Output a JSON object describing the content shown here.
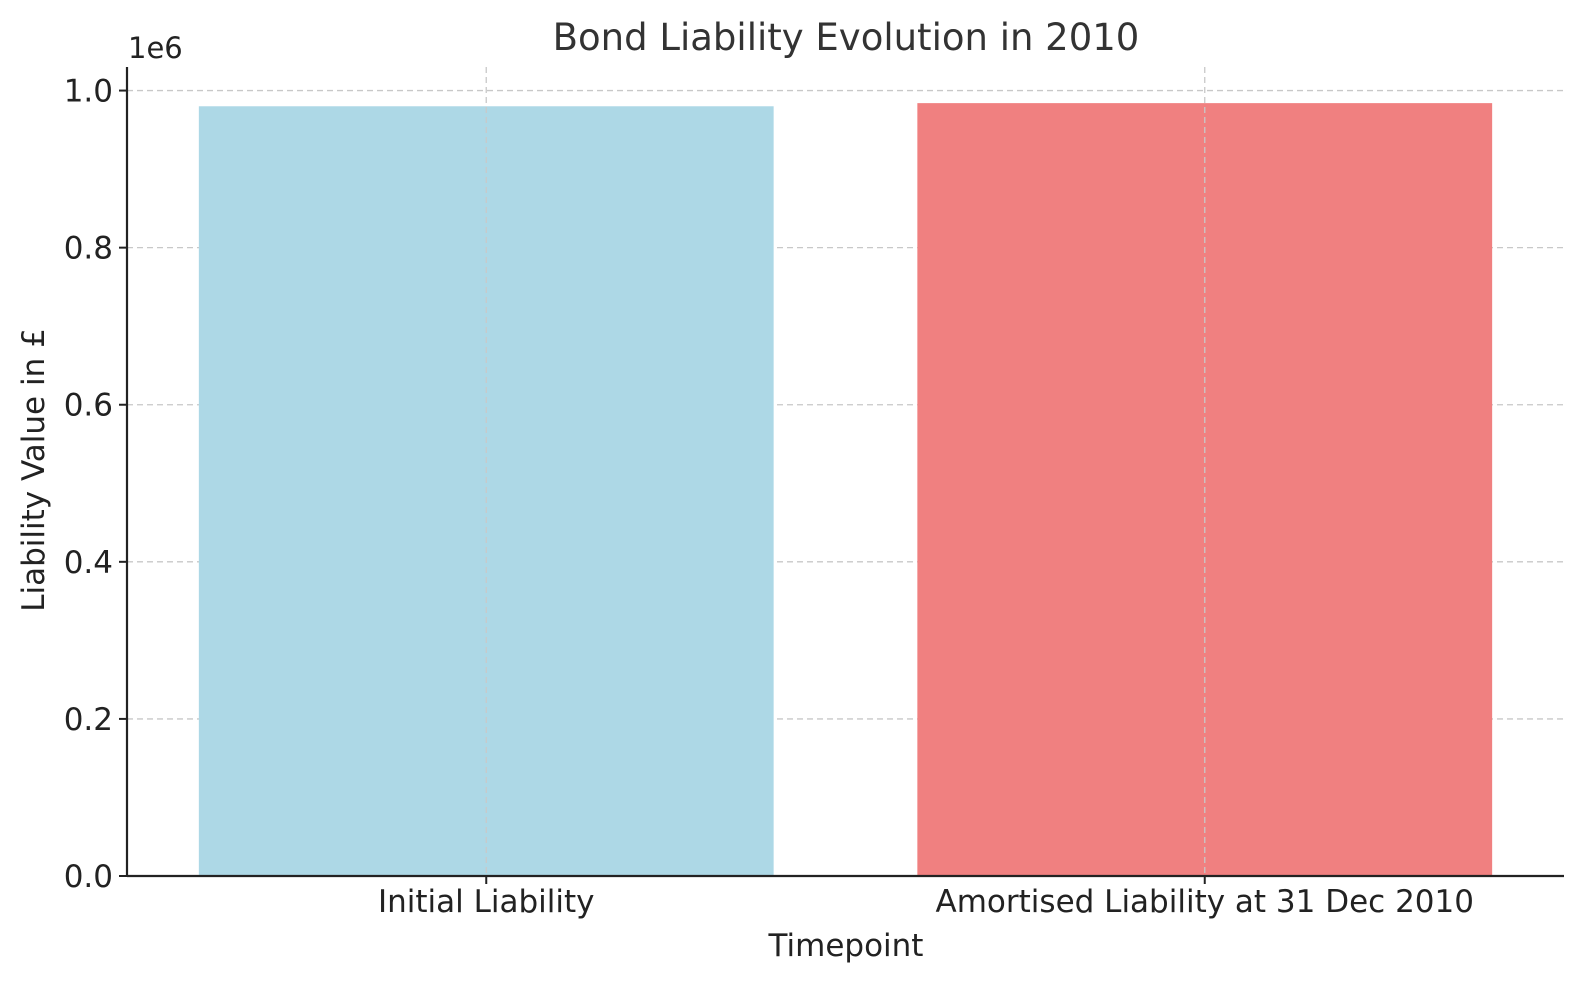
{
  "chart_data": {
    "type": "bar",
    "title": "Bond Liability Evolution in 2010",
    "xlabel": "Timepoint",
    "ylabel": "Liability Value in £",
    "y_offset_label": "1e6",
    "categories": [
      "Initial Liability",
      "Amortised Liability at 31 Dec 2010"
    ],
    "values": [
      980000,
      984000
    ],
    "colors": [
      "#add8e6",
      "#f08080"
    ],
    "ylim": [
      0,
      1030000
    ],
    "yticks": [
      0,
      200000,
      400000,
      600000,
      800000,
      1000000
    ],
    "ytick_labels": [
      "0.0",
      "0.2",
      "0.4",
      "0.6",
      "0.8",
      "1.0"
    ],
    "grid": true,
    "legend": "none"
  }
}
